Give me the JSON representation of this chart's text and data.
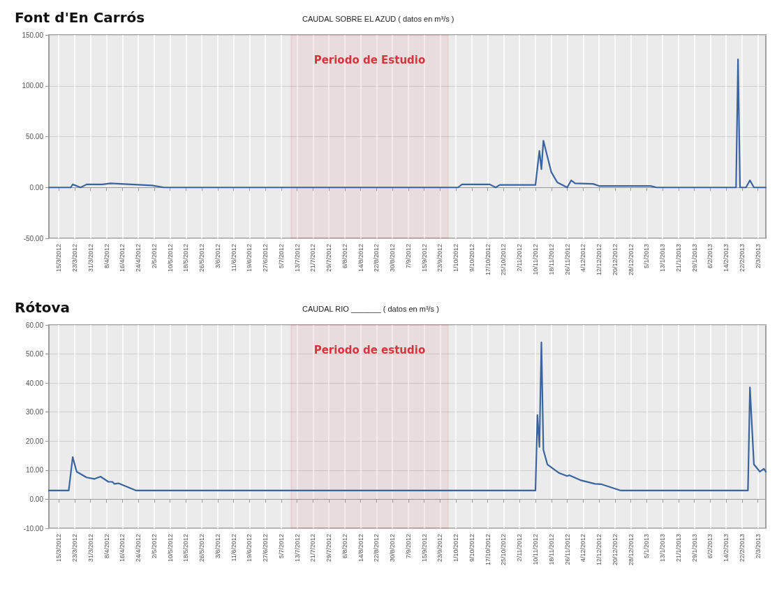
{
  "chart_data": [
    {
      "type": "line",
      "title": "Font d'En Carrós",
      "subtitle": "CAUDAL SOBRE EL AZUD ( datos en m³/s )",
      "series": [
        {
          "color": "#3a64a0",
          "x": [
            "2012-03-10",
            "2012-03-21",
            "2012-03-22",
            "2012-03-26",
            "2012-03-29",
            "2012-04-06",
            "2012-04-10",
            "2012-05-01",
            "2012-05-07",
            "2012-09-28",
            "2012-10-02",
            "2012-10-04",
            "2012-10-18",
            "2012-10-21",
            "2012-10-23",
            "2012-11-10",
            "2012-11-12",
            "2012-11-13",
            "2012-11-14",
            "2012-11-18",
            "2012-11-21",
            "2012-11-26",
            "2012-11-28",
            "2012-11-30",
            "2012-12-09",
            "2012-12-12",
            "2013-01-07",
            "2013-01-10",
            "2013-02-19",
            "2013-02-20",
            "2013-02-21",
            "2013-02-24",
            "2013-02-26",
            "2013-02-28",
            "2013-03-06"
          ],
          "values": [
            0,
            0,
            3,
            0,
            3,
            3,
            4,
            2,
            0,
            0,
            0,
            3,
            3,
            0,
            2.5,
            2.5,
            36,
            18,
            46,
            15,
            5,
            0,
            7,
            4,
            3.5,
            1.5,
            1.5,
            0,
            0,
            126,
            0,
            0,
            7,
            0,
            0
          ]
        }
      ],
      "xlim": [
        "2012-03-10",
        "2013-03-06"
      ],
      "xticks": [
        {
          "value": "2012-03-15",
          "label": "15/3/2012"
        },
        {
          "value": "2012-03-23",
          "label": "23/3/2012"
        },
        {
          "value": "2012-03-31",
          "label": "31/3/2012"
        },
        {
          "value": "2012-04-08",
          "label": "8/4/2012"
        },
        {
          "value": "2012-04-16",
          "label": "16/4/2012"
        },
        {
          "value": "2012-04-24",
          "label": "24/4/2012"
        },
        {
          "value": "2012-05-02",
          "label": "2/5/2012"
        },
        {
          "value": "2012-05-10",
          "label": "10/5/2012"
        },
        {
          "value": "2012-05-18",
          "label": "18/5/2012"
        },
        {
          "value": "2012-05-26",
          "label": "26/5/2012"
        },
        {
          "value": "2012-06-03",
          "label": "3/6/2012"
        },
        {
          "value": "2012-06-11",
          "label": "11/6/2012"
        },
        {
          "value": "2012-06-19",
          "label": "19/6/2012"
        },
        {
          "value": "2012-06-27",
          "label": "27/6/2012"
        },
        {
          "value": "2012-07-05",
          "label": "5/7/2012"
        },
        {
          "value": "2012-07-13",
          "label": "13/7/2012"
        },
        {
          "value": "2012-07-21",
          "label": "21/7/2012"
        },
        {
          "value": "2012-07-29",
          "label": "29/7/2012"
        },
        {
          "value": "2012-08-06",
          "label": "6/8/2012"
        },
        {
          "value": "2012-08-14",
          "label": "14/8/2012"
        },
        {
          "value": "2012-08-22",
          "label": "22/8/2012"
        },
        {
          "value": "2012-08-30",
          "label": "30/8/2012"
        },
        {
          "value": "2012-09-07",
          "label": "7/9/2012"
        },
        {
          "value": "2012-09-15",
          "label": "15/9/2012"
        },
        {
          "value": "2012-09-23",
          "label": "23/9/2012"
        },
        {
          "value": "2012-10-01",
          "label": "1/10/2012"
        },
        {
          "value": "2012-10-09",
          "label": "9/10/2012"
        },
        {
          "value": "2012-10-17",
          "label": "17/10/2012"
        },
        {
          "value": "2012-10-25",
          "label": "25/10/2012"
        },
        {
          "value": "2012-11-02",
          "label": "2/11/2012"
        },
        {
          "value": "2012-11-10",
          "label": "10/11/2012"
        },
        {
          "value": "2012-11-18",
          "label": "18/11/2012"
        },
        {
          "value": "2012-11-26",
          "label": "26/11/2012"
        },
        {
          "value": "2012-12-04",
          "label": "4/12/2012"
        },
        {
          "value": "2012-12-12",
          "label": "12/12/2012"
        },
        {
          "value": "2012-12-20",
          "label": "20/12/2012"
        },
        {
          "value": "2012-12-28",
          "label": "28/12/2012"
        },
        {
          "value": "2013-01-05",
          "label": "5/1/2013"
        },
        {
          "value": "2013-01-13",
          "label": "13/1/2013"
        },
        {
          "value": "2013-01-21",
          "label": "21/1/2013"
        },
        {
          "value": "2013-01-29",
          "label": "29/1/2013"
        },
        {
          "value": "2013-02-06",
          "label": "6/2/2013"
        },
        {
          "value": "2013-02-14",
          "label": "14/2/2013"
        },
        {
          "value": "2013-02-22",
          "label": "22/2/2013"
        },
        {
          "value": "2013-03-02",
          "label": "2/3/2013"
        }
      ],
      "ylim": [
        -50,
        150
      ],
      "yticks": [
        {
          "value": -50,
          "label": "-50.00"
        },
        {
          "value": 0,
          "label": "0.00"
        },
        {
          "value": 50,
          "label": "50.00"
        },
        {
          "value": 100,
          "label": "100.00"
        },
        {
          "value": 150,
          "label": "150.00"
        }
      ],
      "bands": [
        {
          "axis": "x",
          "from": "2012-07-10",
          "to": "2012-09-27",
          "label": "Periodo de Estudio",
          "color": "#d9333f"
        }
      ],
      "grid": true,
      "marker": "none"
    },
    {
      "type": "line",
      "title": "Rótova",
      "subtitle": "CAUDAL RIO _______ ( datos en m³/s )",
      "series": [
        {
          "color": "#3a64a0",
          "x": [
            "2012-03-10",
            "2012-03-20",
            "2012-03-22",
            "2012-03-24",
            "2012-03-29",
            "2012-04-02",
            "2012-04-05",
            "2012-04-09",
            "2012-04-11",
            "2012-04-12",
            "2012-04-14",
            "2012-04-23",
            "2012-11-10",
            "2012-11-11",
            "2012-11-12",
            "2012-11-13",
            "2012-11-14",
            "2012-11-16",
            "2012-11-22",
            "2012-11-26",
            "2012-11-27",
            "2012-12-03",
            "2012-12-10",
            "2012-12-13",
            "2012-12-23",
            "2013-02-25",
            "2013-02-26",
            "2013-02-28",
            "2013-03-03",
            "2013-03-05",
            "2013-03-06"
          ],
          "values": [
            3,
            3,
            14.5,
            9.5,
            7.5,
            7,
            7.8,
            6,
            6,
            5.3,
            5.5,
            3,
            3,
            29,
            18,
            54,
            17,
            12,
            9,
            8,
            8.3,
            6.5,
            5.3,
            5.2,
            3,
            3,
            38.5,
            12,
            9.5,
            10.5,
            9.5
          ]
        }
      ],
      "xlim": [
        "2012-03-10",
        "2013-03-06"
      ],
      "xticks": [
        {
          "value": "2012-03-15",
          "label": "15/3/2012"
        },
        {
          "value": "2012-03-23",
          "label": "23/3/2012"
        },
        {
          "value": "2012-03-31",
          "label": "31/3/2012"
        },
        {
          "value": "2012-04-08",
          "label": "8/4/2012"
        },
        {
          "value": "2012-04-16",
          "label": "16/4/2012"
        },
        {
          "value": "2012-04-24",
          "label": "24/4/2012"
        },
        {
          "value": "2012-05-02",
          "label": "2/5/2012"
        },
        {
          "value": "2012-05-10",
          "label": "10/5/2012"
        },
        {
          "value": "2012-05-18",
          "label": "18/5/2012"
        },
        {
          "value": "2012-05-26",
          "label": "26/5/2012"
        },
        {
          "value": "2012-06-03",
          "label": "3/6/2012"
        },
        {
          "value": "2012-06-11",
          "label": "11/6/2012"
        },
        {
          "value": "2012-06-19",
          "label": "19/6/2012"
        },
        {
          "value": "2012-06-27",
          "label": "27/6/2012"
        },
        {
          "value": "2012-07-05",
          "label": "5/7/2012"
        },
        {
          "value": "2012-07-13",
          "label": "13/7/2012"
        },
        {
          "value": "2012-07-21",
          "label": "21/7/2012"
        },
        {
          "value": "2012-07-29",
          "label": "29/7/2012"
        },
        {
          "value": "2012-08-06",
          "label": "6/8/2012"
        },
        {
          "value": "2012-08-14",
          "label": "14/8/2012"
        },
        {
          "value": "2012-08-22",
          "label": "22/8/2012"
        },
        {
          "value": "2012-08-30",
          "label": "30/8/2012"
        },
        {
          "value": "2012-09-07",
          "label": "7/9/2012"
        },
        {
          "value": "2012-09-15",
          "label": "15/9/2012"
        },
        {
          "value": "2012-09-23",
          "label": "23/9/2012"
        },
        {
          "value": "2012-10-01",
          "label": "1/10/2012"
        },
        {
          "value": "2012-10-09",
          "label": "9/10/2012"
        },
        {
          "value": "2012-10-17",
          "label": "17/10/2012"
        },
        {
          "value": "2012-10-25",
          "label": "25/10/2012"
        },
        {
          "value": "2012-11-02",
          "label": "2/11/2012"
        },
        {
          "value": "2012-11-10",
          "label": "10/11/2012"
        },
        {
          "value": "2012-11-18",
          "label": "18/11/2012"
        },
        {
          "value": "2012-11-26",
          "label": "26/11/2012"
        },
        {
          "value": "2012-12-04",
          "label": "4/12/2012"
        },
        {
          "value": "2012-12-12",
          "label": "12/12/2012"
        },
        {
          "value": "2012-12-20",
          "label": "20/12/2012"
        },
        {
          "value": "2012-12-28",
          "label": "28/12/2012"
        },
        {
          "value": "2013-01-05",
          "label": "5/1/2013"
        },
        {
          "value": "2013-01-13",
          "label": "13/1/2013"
        },
        {
          "value": "2013-01-21",
          "label": "21/1/2013"
        },
        {
          "value": "2013-01-29",
          "label": "29/1/2013"
        },
        {
          "value": "2013-02-06",
          "label": "6/2/2013"
        },
        {
          "value": "2013-02-14",
          "label": "14/2/2013"
        },
        {
          "value": "2013-02-22",
          "label": "22/2/2013"
        },
        {
          "value": "2013-03-02",
          "label": "2/3/2013"
        }
      ],
      "ylim": [
        -10,
        60
      ],
      "yticks": [
        {
          "value": -10,
          "label": "-10.00"
        },
        {
          "value": 0,
          "label": "0.00"
        },
        {
          "value": 10,
          "label": "10.00"
        },
        {
          "value": 20,
          "label": "20.00"
        },
        {
          "value": 30,
          "label": "30.00"
        },
        {
          "value": 40,
          "label": "40.00"
        },
        {
          "value": 50,
          "label": "50.00"
        },
        {
          "value": 60,
          "label": "60.00"
        }
      ],
      "bands": [
        {
          "axis": "x",
          "from": "2012-07-10",
          "to": "2012-09-27",
          "label": "Periodo de estudio",
          "color": "#d9333f"
        }
      ],
      "grid": true,
      "marker": "none"
    }
  ]
}
